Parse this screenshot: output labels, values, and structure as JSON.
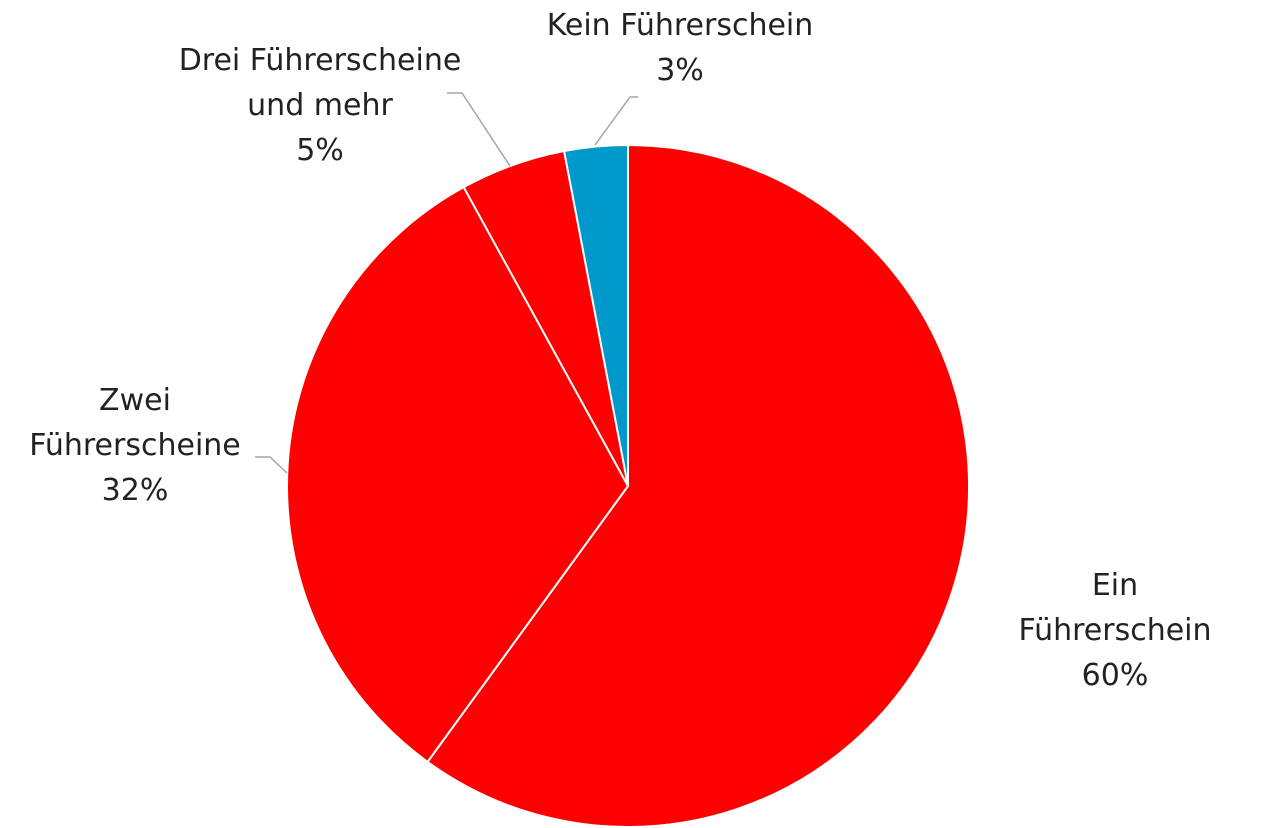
{
  "chart_data": {
    "type": "pie",
    "categories": [
      "Ein Führerschein",
      "Zwei\nFührerscheine",
      "Drei Führerscheine\nund mehr",
      "Kein Führerschein"
    ],
    "values": [
      60,
      32,
      5,
      3
    ],
    "value_labels": [
      "60%",
      "32%",
      "5%",
      "3%"
    ],
    "colors": [
      "#ff0000",
      "#ff0000",
      "#ff0000",
      "#0099cc"
    ]
  }
}
